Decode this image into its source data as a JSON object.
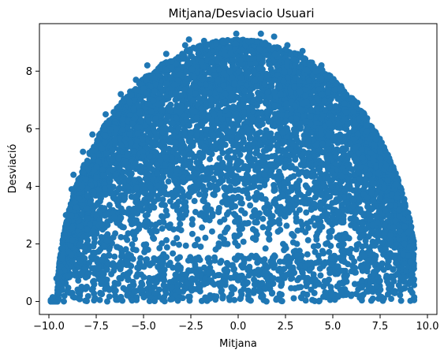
{
  "chart_data": {
    "type": "scatter",
    "title": "Mitjana/Desviacio Usuari",
    "xlabel": "Mitjana",
    "ylabel": "Desviació",
    "xlim": [
      -10.5,
      10.5
    ],
    "ylim": [
      -0.45,
      9.65
    ],
    "xticks": [
      -10.0,
      -7.5,
      -5.0,
      -2.5,
      0.0,
      2.5,
      5.0,
      7.5,
      10.0
    ],
    "xtick_labels": [
      "−10.0",
      "−7.5",
      "−5.0",
      "−2.5",
      "0.0",
      "2.5",
      "5.0",
      "7.5",
      "10.0"
    ],
    "yticks": [
      0,
      2,
      4,
      6,
      8
    ],
    "ytick_labels": [
      "0",
      "2",
      "4",
      "6",
      "8"
    ],
    "grid": false,
    "legend": "none",
    "marker_color": "#1f77b4",
    "point_count": 7000,
    "random_seed": 12345,
    "series": [
      {
        "outliers": [
          {
            "x": -9.9,
            "y": 0.05
          },
          {
            "x": -9.8,
            "y": 0.15
          },
          {
            "x": -9.5,
            "y": 0.3
          },
          {
            "x": -9.6,
            "y": 0.8
          },
          {
            "x": -9.3,
            "y": 1.5
          },
          {
            "x": -9.2,
            "y": 2.2
          },
          {
            "x": -9.1,
            "y": 3.0
          },
          {
            "x": -8.8,
            "y": 3.9
          },
          {
            "x": -8.7,
            "y": 4.4
          },
          {
            "x": -8.2,
            "y": 5.2
          },
          {
            "x": -7.7,
            "y": 5.8
          },
          {
            "x": -7.0,
            "y": 6.5
          },
          {
            "x": -6.2,
            "y": 7.2
          },
          {
            "x": -5.4,
            "y": 7.7
          },
          {
            "x": -4.8,
            "y": 8.2
          },
          {
            "x": -3.8,
            "y": 8.6
          },
          {
            "x": -2.8,
            "y": 8.9
          },
          {
            "x": -2.6,
            "y": 9.1
          },
          {
            "x": -1.8,
            "y": 9.05
          },
          {
            "x": -0.8,
            "y": 9.0
          },
          {
            "x": -0.1,
            "y": 9.3
          },
          {
            "x": 0.7,
            "y": 9.05
          },
          {
            "x": 1.2,
            "y": 9.3
          },
          {
            "x": 1.9,
            "y": 9.2
          },
          {
            "x": 2.6,
            "y": 8.9
          },
          {
            "x": 3.4,
            "y": 8.7
          },
          {
            "x": 4.4,
            "y": 8.2
          },
          {
            "x": 5.0,
            "y": 7.7
          },
          {
            "x": 6.3,
            "y": 6.9
          },
          {
            "x": 6.8,
            "y": 5.9
          },
          {
            "x": 7.5,
            "y": 5.2
          },
          {
            "x": 7.9,
            "y": 4.2
          },
          {
            "x": 8.4,
            "y": 3.6
          },
          {
            "x": 8.8,
            "y": 2.6
          },
          {
            "x": 9.0,
            "y": 1.6
          },
          {
            "x": 9.1,
            "y": 0.7
          },
          {
            "x": 9.2,
            "y": 0.3
          },
          {
            "x": 9.3,
            "y": 0.15
          },
          {
            "x": -1.5,
            "y": 0.1
          },
          {
            "x": -0.2,
            "y": 0.05
          },
          {
            "x": 1.8,
            "y": 0.3
          },
          {
            "x": 3.3,
            "y": 0.5
          },
          {
            "x": -6.5,
            "y": 0.2
          },
          {
            "x": 6.5,
            "y": 0.2
          },
          {
            "x": 4.9,
            "y": 0.5
          }
        ]
      }
    ]
  }
}
